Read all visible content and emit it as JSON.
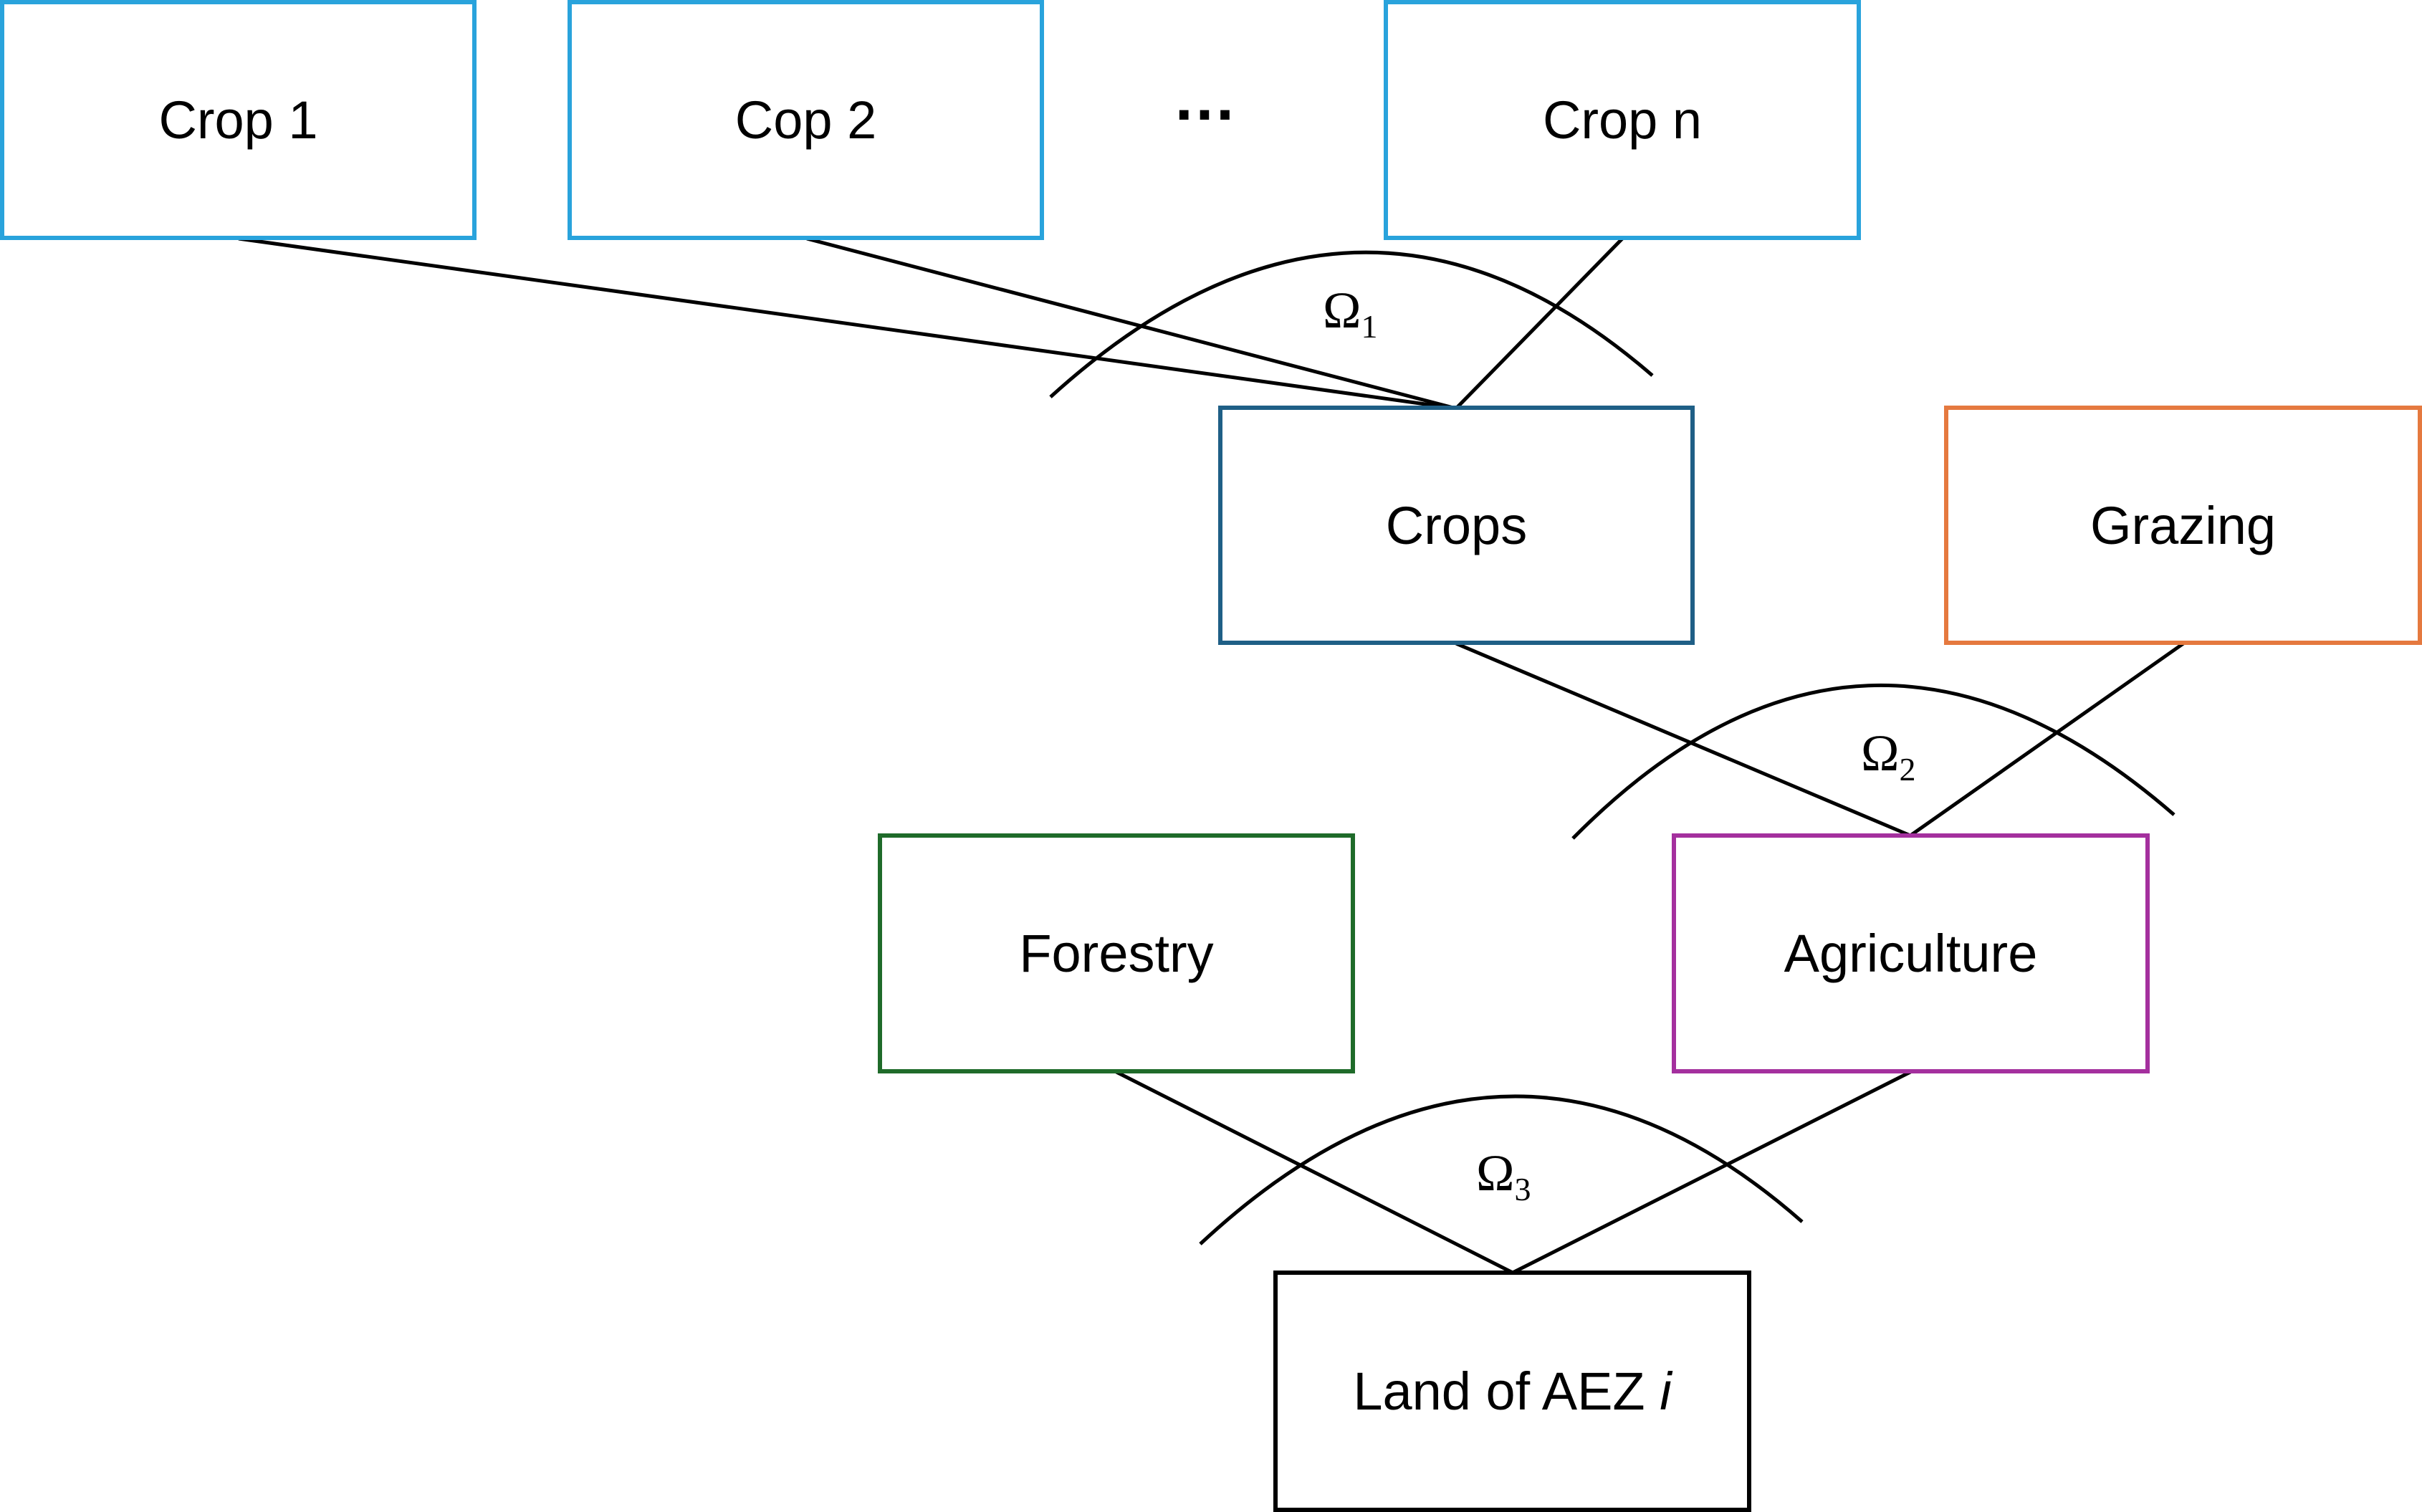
{
  "nodes": {
    "crop1": {
      "label": "Crop 1",
      "border_color": "#29A3DC"
    },
    "crop2": {
      "label": "Cop 2",
      "border_color": "#29A3DC"
    },
    "cropn": {
      "label": "Crop n",
      "border_color": "#29A3DC"
    },
    "crops": {
      "label": "Crops",
      "border_color": "#1F5F86"
    },
    "grazing": {
      "label": "Grazing",
      "border_color": "#E5793F"
    },
    "forestry": {
      "label": "Forestry",
      "border_color": "#1F6B2A"
    },
    "agriculture": {
      "label": "Agriculture",
      "border_color": "#A4309E"
    },
    "land": {
      "label_prefix": "Land of AEZ ",
      "label_var": "i",
      "border_color": "#000000"
    }
  },
  "ellipsis": "…",
  "omegas": [
    {
      "symbol": "Ω",
      "sub": "1"
    },
    {
      "symbol": "Ω",
      "sub": "2"
    },
    {
      "symbol": "Ω",
      "sub": "3"
    }
  ],
  "line_color": "#000000"
}
